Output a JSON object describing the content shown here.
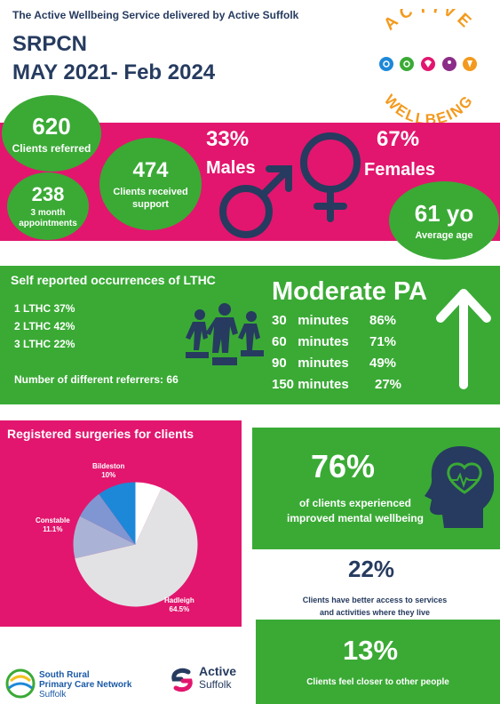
{
  "header": {
    "subtitle": "The Active Wellbeing Service delivered by Active Suffolk",
    "title_line1": "SRPCN",
    "title_line2": "MAY 2021- Feb 2024"
  },
  "logo": {
    "top_word": "ACTIVE",
    "bottom_word": "WELLBEING"
  },
  "stats": {
    "referred": {
      "value": "620",
      "label": "Clients referred"
    },
    "appointments": {
      "value": "238",
      "label_line1": "3 month",
      "label_line2": "appointments"
    },
    "support": {
      "value": "474",
      "label_line1": "Clients received",
      "label_line2": "support"
    },
    "males": {
      "pct": "33%",
      "label": "Males"
    },
    "females": {
      "pct": "67%",
      "label": "Females"
    },
    "age": {
      "value": "61 yo",
      "label": "Average age"
    }
  },
  "lthc": {
    "title": "Self reported occurrences of LTHC",
    "items": [
      "1 LTHC 37%",
      "2 LTHC 42%",
      "3 LTHC 22%"
    ],
    "referrers_label": "Number of different referrers:",
    "referrers_value": "66"
  },
  "pa": {
    "title": "Moderate PA",
    "rows": [
      {
        "minutes": "30",
        "unit": "minutes",
        "pct": "86%"
      },
      {
        "minutes": "60",
        "unit": "minutes",
        "pct": "71%"
      },
      {
        "minutes": "90",
        "unit": "minutes",
        "pct": "49%"
      },
      {
        "minutes": "150",
        "unit": "minutes",
        "pct": "27%"
      }
    ]
  },
  "surgeries": {
    "title": "Registered surgeries for clients",
    "labels": {
      "bildeston": {
        "name": "Bildeston",
        "pct": "10%"
      },
      "constable": {
        "name": "Constable",
        "pct": "11.1%"
      },
      "hadleigh": {
        "name": "Hadleigh",
        "pct": "64.5%"
      }
    }
  },
  "chart_data": {
    "type": "pie",
    "title": "Registered surgeries for clients",
    "series": [
      {
        "name": "Hadleigh",
        "value": 64.5,
        "color": "#e2e2e4"
      },
      {
        "name": "Constable",
        "value": 11.1,
        "color": "#aab3d6"
      },
      {
        "name": "",
        "value": 7.5,
        "color": "#7f96d2"
      },
      {
        "name": "Bildeston",
        "value": 10,
        "color": "#1e88d8"
      },
      {
        "name": "",
        "value": 6.9,
        "color": "#ffffff"
      }
    ]
  },
  "mental": {
    "pct": "76%",
    "label_line1": "of clients experienced",
    "label_line2": "improved mental wellbeing"
  },
  "access": {
    "pct": "22%",
    "label_line1": "Clients have better access to services",
    "label_line2": "and activities where they live"
  },
  "closer": {
    "pct": "13%",
    "label": "Clients feel closer to other people"
  },
  "footer": {
    "srpcn_line1": "South Rural",
    "srpcn_line2": "Primary Care Network",
    "srpcn_line3": "Suffolk",
    "as_line1": "Active",
    "as_line2": "Suffolk"
  },
  "colors": {
    "pink": "#e2166e",
    "green": "#3aaa35",
    "navy": "#263b5f",
    "orange": "#f39a1e"
  }
}
